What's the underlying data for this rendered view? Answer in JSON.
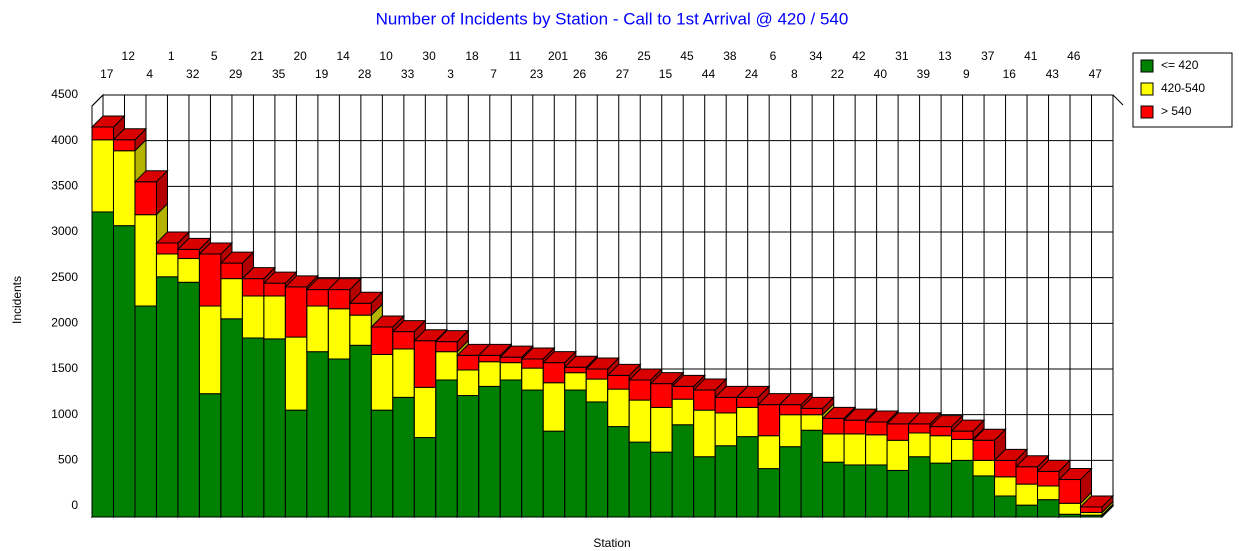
{
  "chart_data": {
    "type": "bar",
    "stacked": true,
    "title": "Number of Incidents by Station - Call to 1st Arrival @ 420 / 540",
    "x_label": "Station",
    "y_label": "Incidents",
    "categories": [
      "17",
      "12",
      "4",
      "1",
      "32",
      "5",
      "29",
      "21",
      "35",
      "20",
      "19",
      "14",
      "28",
      "10",
      "33",
      "30",
      "3",
      "18",
      "7",
      "11",
      "23",
      "201",
      "26",
      "36",
      "27",
      "25",
      "15",
      "45",
      "44",
      "38",
      "24",
      "6",
      "8",
      "34",
      "22",
      "42",
      "40",
      "31",
      "39",
      "13",
      "9",
      "37",
      "16",
      "41",
      "43",
      "46",
      "47"
    ],
    "series": [
      {
        "name": "<= 420",
        "color": "#008000",
        "values": [
          3340,
          3190,
          2310,
          2630,
          2570,
          1350,
          2170,
          1960,
          1950,
          1170,
          1810,
          1730,
          1880,
          1170,
          1310,
          870,
          1500,
          1330,
          1430,
          1500,
          1390,
          940,
          1390,
          1260,
          990,
          820,
          710,
          1010,
          660,
          780,
          880,
          530,
          770,
          950,
          600,
          570,
          570,
          510,
          660,
          590,
          620,
          450,
          230,
          130,
          190,
          30,
          20
        ]
      },
      {
        "name": "420-540",
        "color": "#ffff00",
        "values": [
          790,
          820,
          1000,
          250,
          260,
          960,
          440,
          460,
          470,
          800,
          500,
          550,
          330,
          610,
          530,
          550,
          310,
          280,
          270,
          190,
          240,
          530,
          190,
          250,
          410,
          460,
          490,
          280,
          510,
          360,
          320,
          360,
          350,
          170,
          310,
          340,
          330,
          330,
          260,
          300,
          230,
          170,
          210,
          230,
          150,
          120,
          30
        ]
      },
      {
        "name": "> 540",
        "color": "#ff0000",
        "values": [
          140,
          120,
          360,
          120,
          100,
          570,
          170,
          190,
          140,
          550,
          180,
          210,
          130,
          300,
          190,
          510,
          110,
          160,
          70,
          60,
          100,
          220,
          60,
          110,
          150,
          220,
          260,
          140,
          220,
          170,
          110,
          340,
          110,
          70,
          170,
          150,
          140,
          180,
          100,
          100,
          90,
          220,
          180,
          190,
          160,
          260,
          60
        ]
      }
    ],
    "ylim": [
      0,
      4500
    ],
    "yticks": [
      0,
      500,
      1000,
      1500,
      2000,
      2500,
      3000,
      3500,
      4000,
      4500
    ],
    "grid": true,
    "legend": "top-right"
  }
}
